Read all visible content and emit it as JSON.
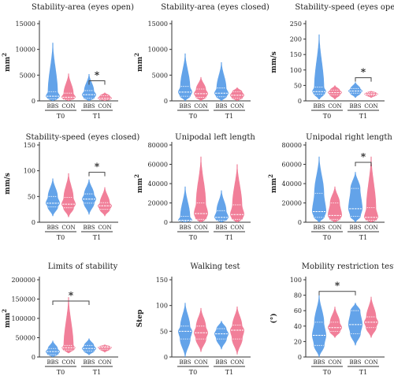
{
  "figure": {
    "colors": {
      "bbs": "#5b9ee8",
      "con": "#f07893",
      "axis": "#333333",
      "text": "#222222",
      "stroke": "#444444"
    }
  },
  "chart_data": [
    {
      "type": "violin",
      "title": "Stability-area (eyes open)",
      "ylabel": "mm",
      "ylabel_superscript": "2",
      "ylim": [
        0,
        15000
      ],
      "yticks": [
        0,
        5000,
        10000,
        15000
      ],
      "categories": [
        "BBS",
        "CON",
        "BBS",
        "CON"
      ],
      "groups": [
        "T0",
        "T1"
      ],
      "series": [
        {
          "name": "BBS",
          "group": "T0",
          "min": 0,
          "q1": 400,
          "median": 900,
          "q3": 1800,
          "max": 11300
        },
        {
          "name": "CON",
          "group": "T0",
          "min": 0,
          "q1": 300,
          "median": 700,
          "q3": 1500,
          "max": 5300
        },
        {
          "name": "BBS",
          "group": "T1",
          "min": 0,
          "q1": 500,
          "median": 1200,
          "q3": 2000,
          "max": 5200
        },
        {
          "name": "CON",
          "group": "T1",
          "min": 0,
          "q1": 200,
          "median": 500,
          "q3": 1000,
          "max": 1600
        }
      ],
      "significance": [
        {
          "from": 2,
          "to": 3,
          "label": "*",
          "y": 3900
        }
      ]
    },
    {
      "type": "violin",
      "title": "Stability-area (eyes closed)",
      "ylabel": "mm",
      "ylabel_superscript": "2",
      "ylim": [
        0,
        15000
      ],
      "yticks": [
        0,
        5000,
        10000,
        15000
      ],
      "categories": [
        "BBS",
        "CON",
        "BBS",
        "CON"
      ],
      "groups": [
        "T0",
        "T1"
      ],
      "series": [
        {
          "name": "BBS",
          "group": "T0",
          "min": 0,
          "q1": 900,
          "median": 1700,
          "q3": 2800,
          "max": 9200
        },
        {
          "name": "CON",
          "group": "T0",
          "min": 0,
          "q1": 700,
          "median": 1400,
          "q3": 2300,
          "max": 4600
        },
        {
          "name": "BBS",
          "group": "T1",
          "min": 0,
          "q1": 800,
          "median": 1500,
          "q3": 2500,
          "max": 7500
        },
        {
          "name": "CON",
          "group": "T1",
          "min": 0,
          "q1": 500,
          "median": 1100,
          "q3": 1800,
          "max": 2600
        }
      ],
      "significance": []
    },
    {
      "type": "violin",
      "title": "Stability-speed (eyes open)",
      "ylabel": "mm/s",
      "ylabel_superscript": "",
      "ylim": [
        0,
        250
      ],
      "yticks": [
        0,
        50,
        100,
        150,
        200,
        250
      ],
      "categories": [
        "BBS",
        "CON",
        "BBS",
        "CON"
      ],
      "groups": [
        "T0",
        "T1"
      ],
      "series": [
        {
          "name": "BBS",
          "group": "T0",
          "min": 5,
          "q1": 22,
          "median": 30,
          "q3": 45,
          "max": 215
        },
        {
          "name": "CON",
          "group": "T0",
          "min": 5,
          "q1": 20,
          "median": 27,
          "q3": 35,
          "max": 50
        },
        {
          "name": "BBS",
          "group": "T1",
          "min": 10,
          "q1": 25,
          "median": 32,
          "q3": 40,
          "max": 60
        },
        {
          "name": "CON",
          "group": "T1",
          "min": 10,
          "q1": 18,
          "median": 22,
          "q3": 27,
          "max": 32
        }
      ],
      "significance": [
        {
          "from": 2,
          "to": 3,
          "label": "*",
          "y": 75
        }
      ]
    },
    {
      "type": "violin",
      "title": "Stability-speed (eyes closed)",
      "ylabel": "mm/s",
      "ylabel_superscript": "",
      "ylim": [
        0,
        150
      ],
      "yticks": [
        0,
        50,
        100,
        150
      ],
      "categories": [
        "BBS",
        "CON",
        "BBS",
        "CON"
      ],
      "groups": [
        "T0",
        "T1"
      ],
      "series": [
        {
          "name": "BBS",
          "group": "T0",
          "min": 12,
          "q1": 30,
          "median": 37,
          "q3": 50,
          "max": 85
        },
        {
          "name": "CON",
          "group": "T0",
          "min": 10,
          "q1": 28,
          "median": 35,
          "q3": 48,
          "max": 95
        },
        {
          "name": "BBS",
          "group": "T1",
          "min": 15,
          "q1": 37,
          "median": 45,
          "q3": 55,
          "max": 83
        },
        {
          "name": "CON",
          "group": "T1",
          "min": 12,
          "q1": 25,
          "median": 32,
          "q3": 38,
          "max": 68
        }
      ],
      "significance": [
        {
          "from": 2,
          "to": 3,
          "label": "*",
          "y": 97
        }
      ]
    },
    {
      "type": "violin",
      "title": "Unipodal left length",
      "ylabel": "mm",
      "ylabel_superscript": "2",
      "ylim": [
        0,
        80000
      ],
      "yticks": [
        0,
        20000,
        40000,
        60000,
        80000
      ],
      "categories": [
        "BBS",
        "CON",
        "BBS",
        "CON"
      ],
      "groups": [
        "T0",
        "T1"
      ],
      "series": [
        {
          "name": "BBS",
          "group": "T0",
          "min": 0,
          "q1": 800,
          "median": 2000,
          "q3": 6000,
          "max": 37000
        },
        {
          "name": "CON",
          "group": "T0",
          "min": 0,
          "q1": 3000,
          "median": 9000,
          "q3": 20000,
          "max": 68000
        },
        {
          "name": "BBS",
          "group": "T1",
          "min": 0,
          "q1": 2000,
          "median": 5000,
          "q3": 12000,
          "max": 33000
        },
        {
          "name": "CON",
          "group": "T1",
          "min": 0,
          "q1": 3000,
          "median": 8000,
          "q3": 18000,
          "max": 60000
        }
      ],
      "significance": []
    },
    {
      "type": "violin",
      "title": "Unipodal right length",
      "ylabel": "mm",
      "ylabel_superscript": "2",
      "ylim": [
        0,
        80000
      ],
      "yticks": [
        0,
        20000,
        40000,
        60000,
        80000
      ],
      "categories": [
        "BBS",
        "CON",
        "BBS",
        "CON"
      ],
      "groups": [
        "T0",
        "T1"
      ],
      "series": [
        {
          "name": "BBS",
          "group": "T0",
          "min": 0,
          "q1": 5000,
          "median": 11000,
          "q3": 30000,
          "max": 68000
        },
        {
          "name": "CON",
          "group": "T0",
          "min": 0,
          "q1": 3000,
          "median": 7000,
          "q3": 20000,
          "max": 37000
        },
        {
          "name": "BBS",
          "group": "T1",
          "min": 0,
          "q1": 6000,
          "median": 14000,
          "q3": 35000,
          "max": 52000
        },
        {
          "name": "CON",
          "group": "T1",
          "min": 0,
          "q1": 2000,
          "median": 5000,
          "q3": 15000,
          "max": 68000
        }
      ],
      "significance": [
        {
          "from": 2,
          "to": 3,
          "label": "*",
          "y": 62000
        }
      ]
    },
    {
      "type": "violin",
      "title": "Limits of stability",
      "ylabel": "mm",
      "ylabel_superscript": "2",
      "ylim": [
        0,
        200000
      ],
      "yticks": [
        0,
        50000,
        100000,
        150000,
        200000
      ],
      "categories": [
        "BBS",
        "CON",
        "BBS",
        "CON"
      ],
      "groups": [
        "T0",
        "T1"
      ],
      "series": [
        {
          "name": "BBS",
          "group": "T0",
          "min": 0,
          "q1": 6000,
          "median": 14000,
          "q3": 22000,
          "max": 42000
        },
        {
          "name": "CON",
          "group": "T0",
          "min": 10000,
          "q1": 18000,
          "median": 24000,
          "q3": 30000,
          "max": 155000
        },
        {
          "name": "BBS",
          "group": "T1",
          "min": 5000,
          "q1": 15000,
          "median": 22000,
          "q3": 30000,
          "max": 48000
        },
        {
          "name": "CON",
          "group": "T1",
          "min": 12000,
          "q1": 20000,
          "median": 25000,
          "q3": 28000,
          "max": 32000
        }
      ],
      "significance": [
        {
          "from": 0,
          "to": 2,
          "label": "*",
          "y": 145000
        }
      ]
    },
    {
      "type": "violin",
      "title": "Walking test",
      "ylabel": "Step",
      "ylabel_superscript": "",
      "ylim": [
        0,
        150
      ],
      "yticks": [
        0,
        50,
        100,
        150
      ],
      "categories": [
        "BBS",
        "CON",
        "BBS",
        "CON"
      ],
      "groups": [
        "T0",
        "T1"
      ],
      "series": [
        {
          "name": "BBS",
          "group": "T0",
          "min": 0,
          "q1": 35,
          "median": 50,
          "q3": 60,
          "max": 105
        },
        {
          "name": "CON",
          "group": "T0",
          "min": 10,
          "q1": 35,
          "median": 47,
          "q3": 60,
          "max": 95
        },
        {
          "name": "BBS",
          "group": "T1",
          "min": 15,
          "q1": 35,
          "median": 45,
          "q3": 55,
          "max": 70
        },
        {
          "name": "CON",
          "group": "T1",
          "min": 5,
          "q1": 35,
          "median": 52,
          "q3": 62,
          "max": 98
        }
      ],
      "significance": []
    },
    {
      "type": "violin",
      "title": "Mobility restriction test",
      "ylabel": "(°)",
      "ylabel_superscript": "",
      "ylim": [
        0,
        100
      ],
      "yticks": [
        0,
        20,
        40,
        60,
        80,
        100
      ],
      "categories": [
        "BBS",
        "CON",
        "BBS",
        "CON"
      ],
      "groups": [
        "T0",
        "T1"
      ],
      "series": [
        {
          "name": "BBS",
          "group": "T0",
          "min": 0,
          "q1": 15,
          "median": 28,
          "q3": 45,
          "max": 80
        },
        {
          "name": "CON",
          "group": "T0",
          "min": 25,
          "q1": 33,
          "median": 38,
          "q3": 45,
          "max": 65
        },
        {
          "name": "BBS",
          "group": "T1",
          "min": 15,
          "q1": 30,
          "median": 42,
          "q3": 60,
          "max": 70
        },
        {
          "name": "CON",
          "group": "T1",
          "min": 25,
          "q1": 38,
          "median": 45,
          "q3": 52,
          "max": 78
        }
      ],
      "significance": [
        {
          "from": 0,
          "to": 2,
          "label": "*",
          "y": 85
        }
      ]
    }
  ]
}
